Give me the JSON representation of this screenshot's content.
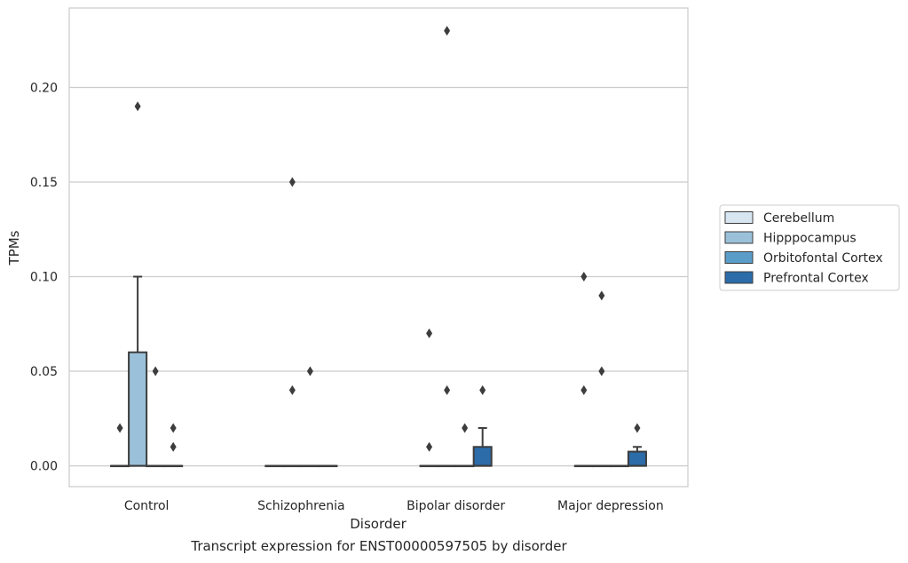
{
  "caption": "Transcript expression for ENST00000597505 by disorder",
  "chart_data": {
    "type": "box",
    "xlabel": "Disorder",
    "ylabel": "TPMs",
    "ylim": [
      -0.011,
      0.242
    ],
    "yticks": [
      0.0,
      0.05,
      0.1,
      0.15,
      0.2
    ],
    "ytick_labels": [
      "0.00",
      "0.05",
      "0.10",
      "0.15",
      "0.20"
    ],
    "grid": "horizontal",
    "legend_position": "outside-right",
    "categories": [
      "Control",
      "Schizophrenia",
      "Bipolar disorder",
      "Major depression"
    ],
    "series": [
      {
        "name": "Cerebellum",
        "color": "#d8e6f2",
        "boxes": [
          {
            "q1": 0,
            "median": 0,
            "q3": 0,
            "whisker_low": 0,
            "whisker_high": 0,
            "outliers": [
              0.02
            ]
          },
          {
            "q1": 0,
            "median": 0,
            "q3": 0,
            "whisker_low": 0,
            "whisker_high": 0,
            "outliers": []
          },
          {
            "q1": 0,
            "median": 0,
            "q3": 0,
            "whisker_low": 0,
            "whisker_high": 0,
            "outliers": [
              0.07,
              0.01
            ]
          },
          {
            "q1": 0,
            "median": 0,
            "q3": 0,
            "whisker_low": 0,
            "whisker_high": 0,
            "outliers": [
              0.04,
              0.1
            ]
          }
        ]
      },
      {
        "name": "Hipppocampus",
        "color": "#9bc1da",
        "boxes": [
          {
            "q1": 0,
            "median": 0,
            "q3": 0.06,
            "whisker_low": 0,
            "whisker_high": 0.1,
            "outliers": [
              0.19
            ]
          },
          {
            "q1": 0,
            "median": 0,
            "q3": 0,
            "whisker_low": 0,
            "whisker_high": 0,
            "outliers": [
              0.15,
              0.04
            ]
          },
          {
            "q1": 0,
            "median": 0,
            "q3": 0,
            "whisker_low": 0,
            "whisker_high": 0,
            "outliers": [
              0.23,
              0.04
            ]
          },
          {
            "q1": 0,
            "median": 0,
            "q3": 0,
            "whisker_low": 0,
            "whisker_high": 0,
            "outliers": [
              0.09,
              0.05
            ]
          }
        ]
      },
      {
        "name": "Orbitofontal Cortex",
        "color": "#5a9dc9",
        "boxes": [
          {
            "q1": 0,
            "median": 0,
            "q3": 0,
            "whisker_low": 0,
            "whisker_high": 0,
            "outliers": [
              0.05
            ]
          },
          {
            "q1": 0,
            "median": 0,
            "q3": 0,
            "whisker_low": 0,
            "whisker_high": 0,
            "outliers": [
              0.05
            ]
          },
          {
            "q1": 0,
            "median": 0,
            "q3": 0,
            "whisker_low": 0,
            "whisker_high": 0,
            "outliers": [
              0.02
            ]
          },
          {
            "q1": 0,
            "median": 0,
            "q3": 0,
            "whisker_low": 0,
            "whisker_high": 0,
            "outliers": []
          }
        ]
      },
      {
        "name": "Prefrontal Cortex",
        "color": "#2b6ca9",
        "boxes": [
          {
            "q1": 0,
            "median": 0,
            "q3": 0,
            "whisker_low": 0,
            "whisker_high": 0,
            "outliers": [
              0.02,
              0.01
            ]
          },
          {
            "q1": 0,
            "median": 0,
            "q3": 0,
            "whisker_low": 0,
            "whisker_high": 0,
            "outliers": []
          },
          {
            "q1": 0,
            "median": 0,
            "q3": 0.01,
            "whisker_low": 0,
            "whisker_high": 0.02,
            "outliers": [
              0.04
            ]
          },
          {
            "q1": 0,
            "median": 0,
            "q3": 0.0075,
            "whisker_low": 0,
            "whisker_high": 0.01,
            "outliers": [
              0.02
            ]
          }
        ]
      }
    ]
  }
}
